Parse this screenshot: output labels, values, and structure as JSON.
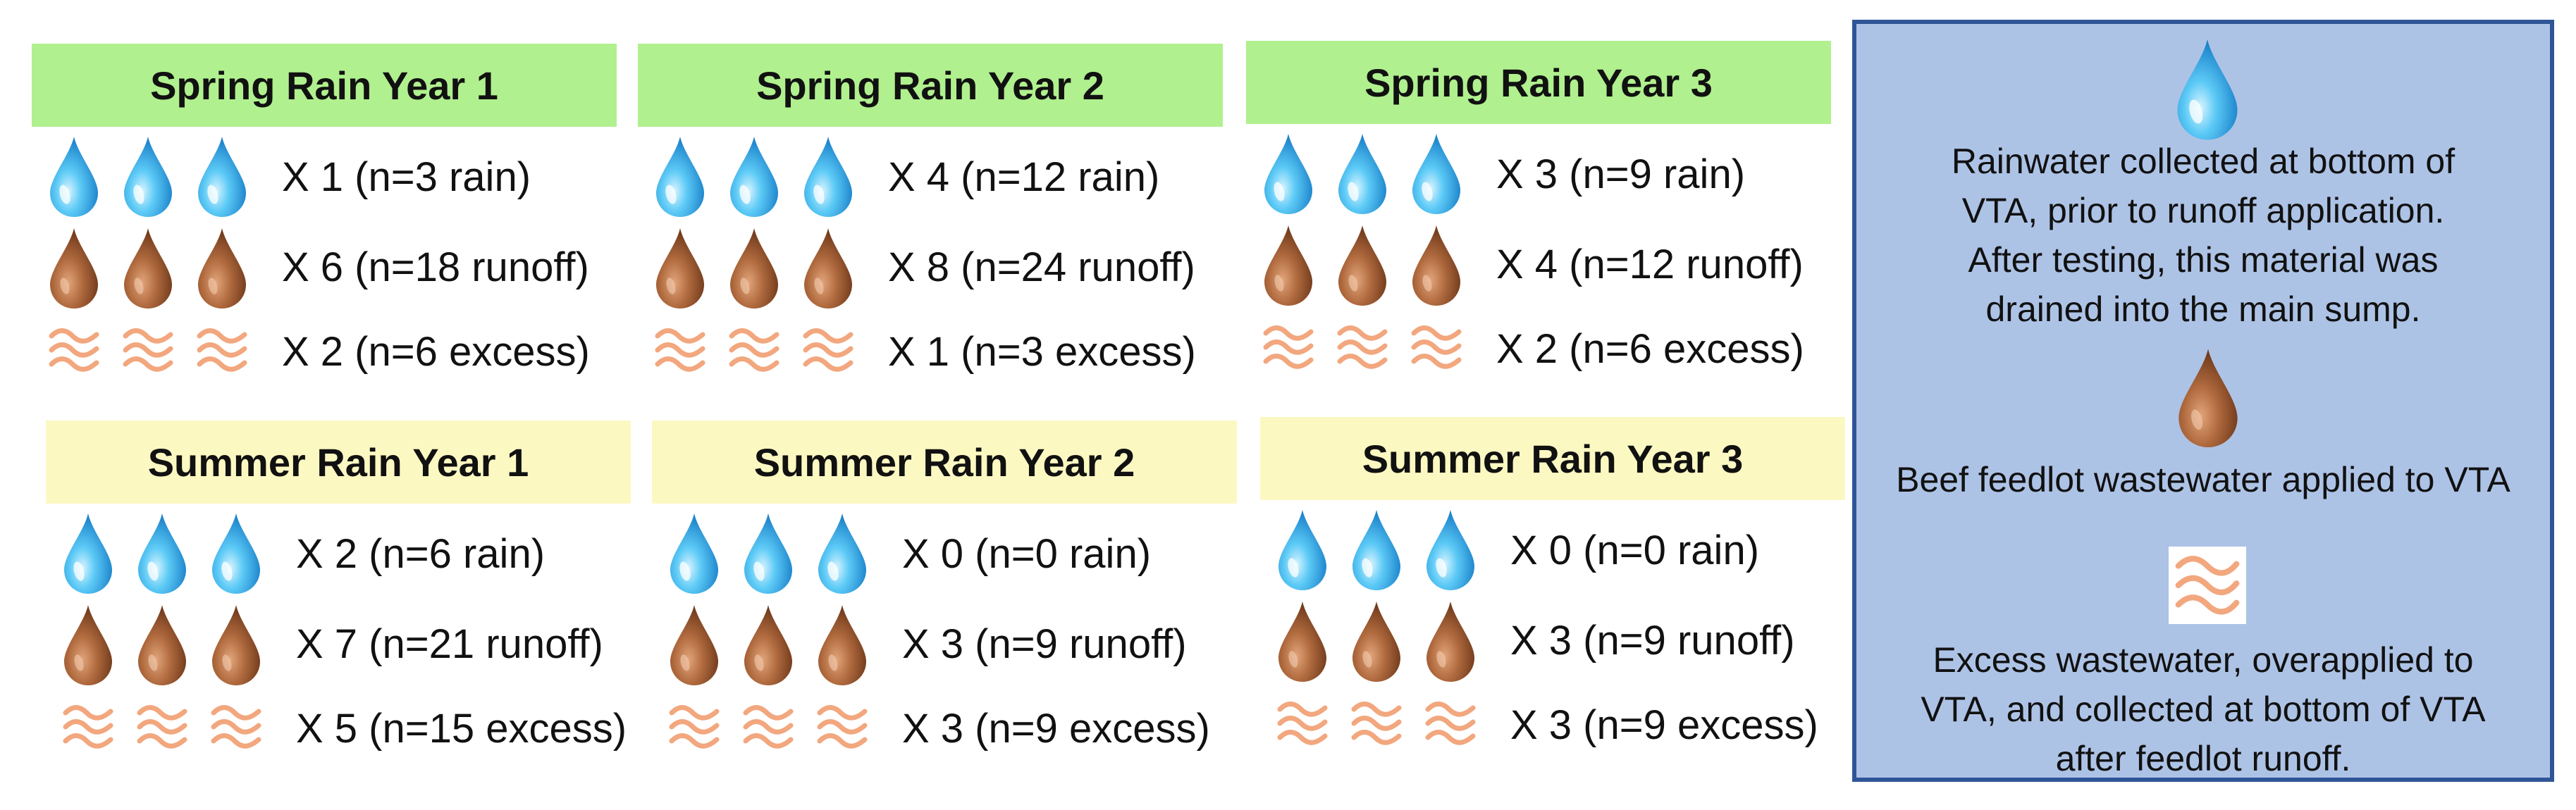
{
  "panels": [
    {
      "title": "Spring Rain Year 1",
      "season": "spring",
      "rain": "X 1 (n=3 rain)",
      "runoff": "X 6 (n=18 runoff)",
      "excess": "X 2 (n=6 excess)"
    },
    {
      "title": "Spring Rain Year 2",
      "season": "spring",
      "rain": "X 4 (n=12 rain)",
      "runoff": "X 8 (n=24 runoff)",
      "excess": "X 1 (n=3 excess)"
    },
    {
      "title": "Spring Rain Year 3",
      "season": "spring",
      "rain": "X 3 (n=9 rain)",
      "runoff": "X 4 (n=12 runoff)",
      "excess": "X 2 (n=6 excess)"
    },
    {
      "title": "Summer Rain Year 1",
      "season": "summer",
      "rain": "X 2 (n=6 rain)",
      "runoff": "X 7 (n=21 runoff)",
      "excess": "X 5 (n=15 excess)"
    },
    {
      "title": "Summer Rain Year 2",
      "season": "summer",
      "rain": "X 0 (n=0 rain)",
      "runoff": "X 3 (n=9 runoff)",
      "excess": "X 3 (n=9 excess)"
    },
    {
      "title": "Summer Rain Year 3",
      "season": "summer",
      "rain": "X 0 (n=0 rain)",
      "runoff": "X 3 (n=9 runoff)",
      "excess": "X 3 (n=9 excess)"
    }
  ],
  "legend": {
    "rain_lines": [
      "Rainwater collected at bottom of",
      "VTA, prior to runoff application.",
      "After testing, this material was",
      "drained into the main sump."
    ],
    "runoff_lines": [
      "Beef feedlot wastewater applied to VTA"
    ],
    "excess_lines": [
      "Excess wastewater, overapplied to",
      "VTA, and collected at bottom of VTA",
      "after feedlot runoff."
    ]
  },
  "colors": {
    "spring_header": "#b0f08e",
    "summer_header": "#fcf8c2",
    "legend_fill": "#adc3e6",
    "legend_border": "#2f5597",
    "rain_drop": "#29a9ea",
    "runoff_drop": "#a0582f",
    "excess_wave": "#f2a77e"
  },
  "icons": {
    "rain": "blue-water-drop-icon",
    "runoff": "brown-wastewater-drop-icon",
    "excess": "orange-wave-icon"
  }
}
